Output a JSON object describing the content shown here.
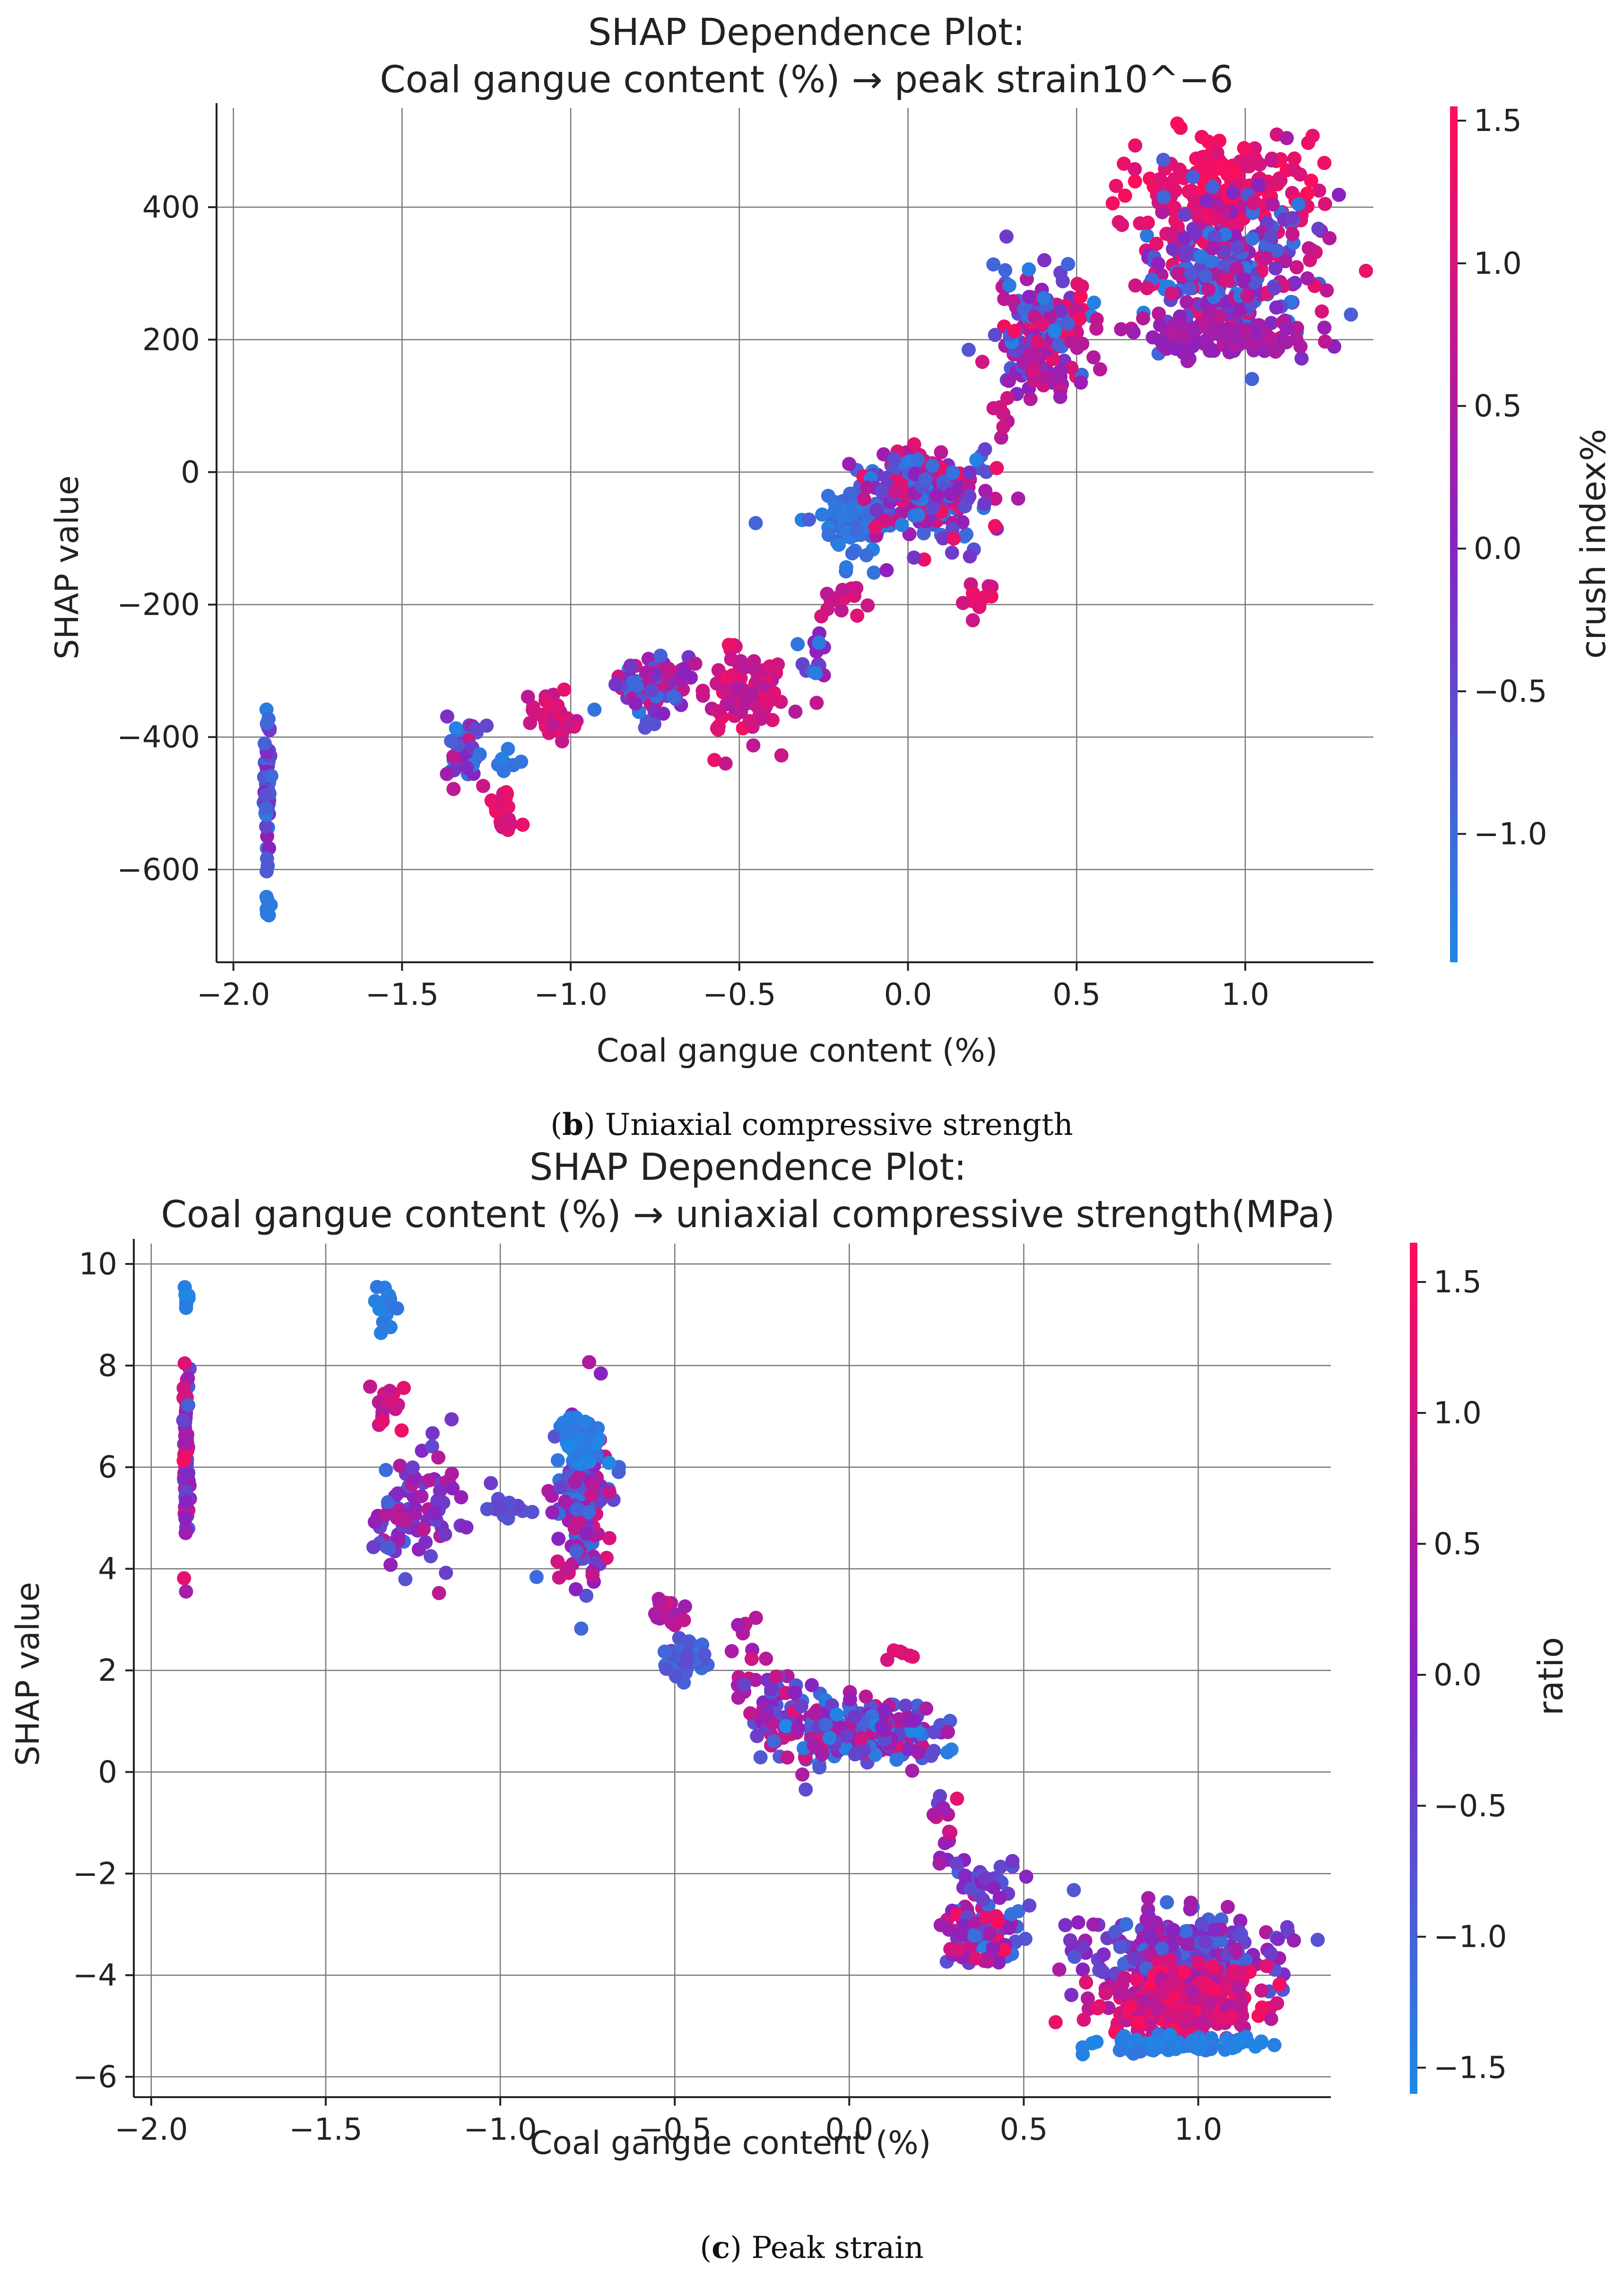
{
  "chart_data": [
    {
      "type": "scatter",
      "title": "SHAP Dependence Plot:\nCoal gangue content (%) → peak strain10^−6",
      "title_lines": [
        "SHAP Dependence Plot:",
        "Coal gangue content (%) → peak strain10^−6"
      ],
      "xlabel": "Coal gangue content (%)",
      "ylabel": "SHAP value",
      "xlim": [
        -2.05,
        1.38
      ],
      "ylim": [
        -740,
        550
      ],
      "xticks": [
        -2.0,
        -1.5,
        -1.0,
        -0.5,
        0.0,
        0.5,
        1.0
      ],
      "xtick_labels": [
        "−2.0",
        "−1.5",
        "−1.0",
        "−0.5",
        "0.0",
        "0.5",
        "1.0"
      ],
      "yticks": [
        -600,
        -400,
        -200,
        0,
        200,
        400
      ],
      "ytick_labels": [
        "−600",
        "−400",
        "−200",
        "0",
        "200",
        "400"
      ],
      "colorbar": {
        "label": "crush index%",
        "range": [
          -1.45,
          1.55
        ],
        "ticks": [
          -1.0,
          -0.5,
          0.0,
          0.5,
          1.0,
          1.5
        ],
        "tick_labels": [
          "−1.0",
          "−0.5",
          "0.0",
          "0.5",
          "1.0",
          "1.5"
        ],
        "low_color": "#1e88e5",
        "mid_color": "#8a22c0",
        "high_color": "#ff0d57"
      },
      "clusters": [
        {
          "x": -1.9,
          "x_spread": 0.005,
          "y_center": -470,
          "y_spread": 55,
          "n": 60,
          "color_range": [
            -1.4,
            0.2
          ]
        },
        {
          "x": -1.9,
          "x_spread": 0.004,
          "y_center": -655,
          "y_spread": 25,
          "n": 6,
          "color_range": [
            -1.3,
            -1.2
          ]
        },
        {
          "x": -1.32,
          "x_spread": 0.03,
          "y_center": -425,
          "y_spread": 22,
          "n": 40,
          "color_range": [
            -1.4,
            1.0
          ]
        },
        {
          "x": -1.2,
          "x_spread": 0.02,
          "y_center": -505,
          "y_spread": 25,
          "n": 25,
          "color_range": [
            0.8,
            1.4
          ]
        },
        {
          "x": -1.2,
          "x_spread": 0.02,
          "y_center": -440,
          "y_spread": 12,
          "n": 10,
          "color_range": [
            -1.3,
            -1.0
          ]
        },
        {
          "x": -1.05,
          "x_spread": 0.03,
          "y_center": -370,
          "y_spread": 15,
          "n": 40,
          "color_range": [
            0.6,
            1.3
          ]
        },
        {
          "x": -0.76,
          "x_spread": 0.05,
          "y_center": -320,
          "y_spread": 25,
          "n": 90,
          "color_range": [
            -1.3,
            1.2
          ]
        },
        {
          "x": -0.5,
          "x_spread": 0.07,
          "y_center": -335,
          "y_spread": 35,
          "n": 90,
          "color_range": [
            0.5,
            1.4
          ]
        },
        {
          "x": -0.27,
          "x_spread": 0.02,
          "y_center": -280,
          "y_spread": 20,
          "n": 15,
          "color_range": [
            -1.3,
            0.5
          ]
        },
        {
          "x": -0.2,
          "x_spread": 0.05,
          "y_center": -195,
          "y_spread": 12,
          "n": 15,
          "color_range": [
            0.6,
            1.2
          ]
        },
        {
          "x": -0.17,
          "x_spread": 0.07,
          "y_center": -60,
          "y_spread": 20,
          "n": 80,
          "color_range": [
            -1.4,
            -0.8
          ]
        },
        {
          "x": -0.17,
          "x_spread": 0.06,
          "y_center": -110,
          "y_spread": 20,
          "n": 15,
          "color_range": [
            -1.4,
            -1.0
          ]
        },
        {
          "x": 0.05,
          "x_spread": 0.1,
          "y_center": -30,
          "y_spread": 35,
          "n": 200,
          "color_range": [
            -1.4,
            1.4
          ]
        },
        {
          "x": 0.2,
          "x_spread": 0.05,
          "y_center": -185,
          "y_spread": 12,
          "n": 10,
          "color_range": [
            0.8,
            1.4
          ]
        },
        {
          "x": 0.4,
          "x_spread": 0.07,
          "y_center": 215,
          "y_spread": 40,
          "n": 150,
          "color_range": [
            -1.4,
            1.5
          ]
        },
        {
          "x": 0.42,
          "x_spread": 0.06,
          "y_center": 150,
          "y_spread": 18,
          "n": 25,
          "color_range": [
            0.2,
            1.0
          ]
        },
        {
          "x": 0.28,
          "x_spread": 0.015,
          "y_center": 85,
          "y_spread": 15,
          "n": 8,
          "color_range": [
            0.6,
            1.2
          ]
        },
        {
          "x": 0.95,
          "x_spread": 0.13,
          "y_center": 430,
          "y_spread": 40,
          "n": 200,
          "color_range": [
            1.0,
            1.55
          ]
        },
        {
          "x": 0.95,
          "x_spread": 0.13,
          "y_center": 300,
          "y_spread": 60,
          "n": 300,
          "color_range": [
            -1.4,
            1.4
          ]
        },
        {
          "x": 0.95,
          "x_spread": 0.12,
          "y_center": 200,
          "y_spread": 15,
          "n": 100,
          "color_range": [
            0.0,
            0.7
          ]
        }
      ]
    },
    {
      "type": "scatter",
      "title": "SHAP Dependence Plot:\nCoal gangue content (%) → uniaxial compressive strength(MPa)",
      "title_lines": [
        "SHAP Dependence Plot:",
        "Coal gangue content (%) → uniaxial compressive strength(MPa)"
      ],
      "xlabel": "Coal gangue content (%)",
      "ylabel": "SHAP value",
      "xlim": [
        -2.05,
        1.38
      ],
      "ylim": [
        -6.4,
        10.4
      ],
      "xticks": [
        -2.0,
        -1.5,
        -1.0,
        -0.5,
        0.0,
        0.5,
        1.0
      ],
      "xtick_labels": [
        "−2.0",
        "−1.5",
        "−1.0",
        "−0.5",
        "0.0",
        "0.5",
        "1.0"
      ],
      "yticks": [
        -6,
        -4,
        -2,
        0,
        2,
        4,
        6,
        8,
        10
      ],
      "ytick_labels": [
        "−6",
        "−4",
        "−2",
        "0",
        "2",
        "4",
        "6",
        "8",
        "10"
      ],
      "colorbar": {
        "label": "ratio",
        "range": [
          -1.6,
          1.65
        ],
        "ticks": [
          -1.5,
          -1.0,
          -0.5,
          0.0,
          0.5,
          1.0,
          1.5
        ],
        "tick_labels": [
          "−1.5",
          "−1.0",
          "−0.5",
          "0.0",
          "0.5",
          "1.0",
          "1.5"
        ],
        "low_color": "#1e88e5",
        "mid_color": "#8a22c0",
        "high_color": "#ff0d57"
      },
      "clusters": [
        {
          "x": -1.9,
          "x_spread": 0.004,
          "y_center": 6.2,
          "y_spread": 1.0,
          "n": 90,
          "color_range": [
            -1.0,
            1.6
          ]
        },
        {
          "x": -1.9,
          "x_spread": 0.004,
          "y_center": 9.35,
          "y_spread": 0.1,
          "n": 8,
          "color_range": [
            -1.6,
            -1.4
          ]
        },
        {
          "x": -1.33,
          "x_spread": 0.015,
          "y_center": 9.2,
          "y_spread": 0.2,
          "n": 15,
          "color_range": [
            -1.6,
            -1.3
          ]
        },
        {
          "x": -1.32,
          "x_spread": 0.03,
          "y_center": 7.2,
          "y_spread": 0.3,
          "n": 15,
          "color_range": [
            0.5,
            1.4
          ]
        },
        {
          "x": -1.3,
          "x_spread": 0.03,
          "y_center": 5.0,
          "y_spread": 0.6,
          "n": 40,
          "color_range": [
            -1.2,
            0.8
          ]
        },
        {
          "x": -1.18,
          "x_spread": 0.04,
          "y_center": 5.2,
          "y_spread": 0.6,
          "n": 40,
          "color_range": [
            -0.6,
            0.8
          ]
        },
        {
          "x": -1.0,
          "x_spread": 0.04,
          "y_center": 5.2,
          "y_spread": 0.1,
          "n": 20,
          "color_range": [
            -0.8,
            -0.3
          ]
        },
        {
          "x": -0.76,
          "x_spread": 0.04,
          "y_center": 5.2,
          "y_spread": 0.8,
          "n": 150,
          "color_range": [
            -1.4,
            1.2
          ]
        },
        {
          "x": -0.76,
          "x_spread": 0.03,
          "y_center": 6.5,
          "y_spread": 0.2,
          "n": 40,
          "color_range": [
            -1.6,
            -1.2
          ]
        },
        {
          "x": -0.52,
          "x_spread": 0.03,
          "y_center": 3.2,
          "y_spread": 0.3,
          "n": 15,
          "color_range": [
            0.2,
            1.0
          ]
        },
        {
          "x": -0.48,
          "x_spread": 0.04,
          "y_center": 2.2,
          "y_spread": 0.2,
          "n": 40,
          "color_range": [
            -1.3,
            -0.6
          ]
        },
        {
          "x": -0.3,
          "x_spread": 0.03,
          "y_center": 2.2,
          "y_spread": 0.5,
          "n": 15,
          "color_range": [
            0.0,
            1.0
          ]
        },
        {
          "x": -0.18,
          "x_spread": 0.05,
          "y_center": 1.2,
          "y_spread": 0.5,
          "n": 60,
          "color_range": [
            -1.2,
            1.2
          ]
        },
        {
          "x": 0.05,
          "x_spread": 0.1,
          "y_center": 0.8,
          "y_spread": 0.3,
          "n": 220,
          "color_range": [
            -1.6,
            1.2
          ]
        },
        {
          "x": 0.17,
          "x_spread": 0.03,
          "y_center": 2.3,
          "y_spread": 0.1,
          "n": 6,
          "color_range": [
            0.8,
            1.3
          ]
        },
        {
          "x": 0.38,
          "x_spread": 0.06,
          "y_center": -3.2,
          "y_spread": 0.3,
          "n": 120,
          "color_range": [
            -1.6,
            1.6
          ]
        },
        {
          "x": 0.4,
          "x_spread": 0.05,
          "y_center": -2.1,
          "y_spread": 0.15,
          "n": 30,
          "color_range": [
            -1.2,
            0.2
          ]
        },
        {
          "x": 0.28,
          "x_spread": 0.02,
          "y_center": -1.0,
          "y_spread": 0.5,
          "n": 15,
          "color_range": [
            -0.6,
            1.3
          ]
        },
        {
          "x": 0.95,
          "x_spread": 0.13,
          "y_center": -3.6,
          "y_spread": 0.4,
          "n": 250,
          "color_range": [
            -1.2,
            0.6
          ]
        },
        {
          "x": 0.95,
          "x_spread": 0.13,
          "y_center": -4.6,
          "y_spread": 0.35,
          "n": 250,
          "color_range": [
            0.5,
            1.65
          ]
        },
        {
          "x": 0.95,
          "x_spread": 0.12,
          "y_center": -5.35,
          "y_spread": 0.1,
          "n": 80,
          "color_range": [
            -1.6,
            -1.3
          ]
        }
      ]
    }
  ],
  "captions": [
    {
      "letter": "b",
      "text": " Uniaxial compressive strength"
    },
    {
      "letter": "c",
      "text": " Peak strain"
    }
  ],
  "caption_parens": {
    "open": "(",
    "close": ")"
  }
}
